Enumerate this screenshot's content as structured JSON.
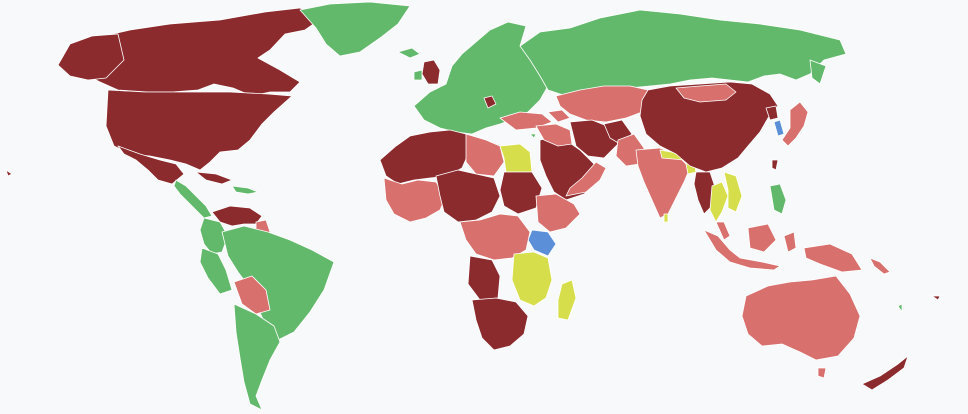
{
  "map": {
    "projection": "world",
    "background_color": "#f8f9fa",
    "border_color": "#ffffff",
    "legend": {
      "dark_red": "#8b2b2e",
      "light_red": "#d8706d",
      "green": "#63b96b",
      "yellow_green": "#d7de4b",
      "blue": "#5b8fd8"
    }
  }
}
